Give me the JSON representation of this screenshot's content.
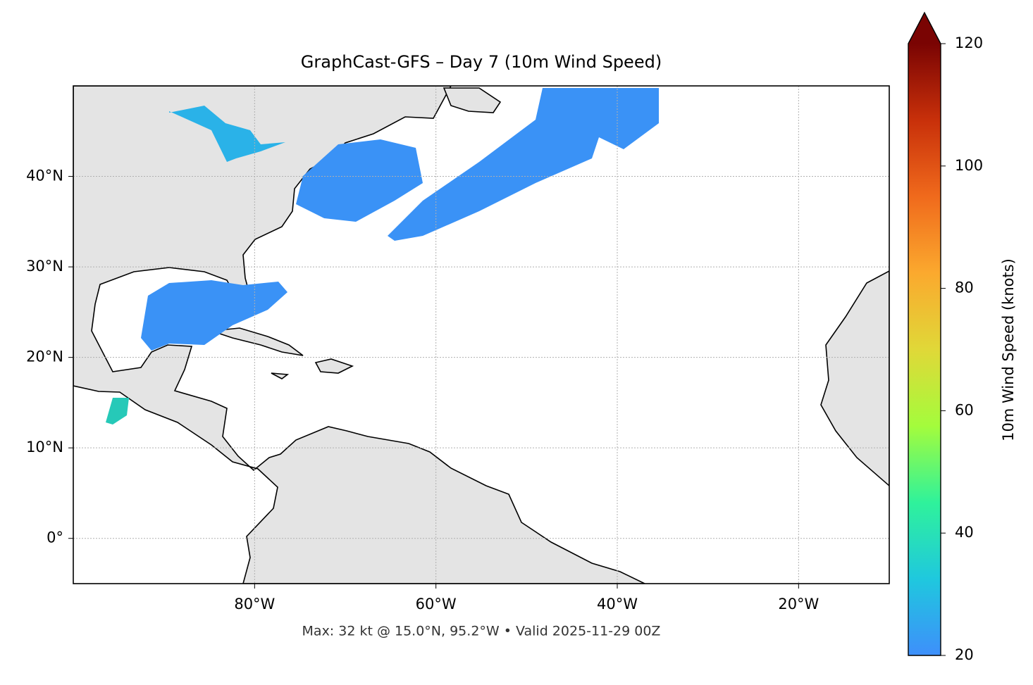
{
  "chart_data": {
    "type": "map",
    "title": "GraphCast-GFS – Day 7 (10m Wind Speed)",
    "footer": "Max: 32 kt @ 15.0°N, 95.2°W • Valid 2025-11-29 00Z",
    "xlim": [
      -100,
      -10
    ],
    "ylim": [
      -5,
      50
    ],
    "xticks": [
      {
        "value": -80,
        "label": "80°W"
      },
      {
        "value": -60,
        "label": "60°W"
      },
      {
        "value": -40,
        "label": "40°W"
      },
      {
        "value": -20,
        "label": "20°W"
      }
    ],
    "yticks": [
      {
        "value": 0,
        "label": "0°"
      },
      {
        "value": 10,
        "label": "10°N"
      },
      {
        "value": 20,
        "label": "20°N"
      },
      {
        "value": 30,
        "label": "30°N"
      },
      {
        "value": 40,
        "label": "40°N"
      }
    ],
    "grid": true,
    "colorbar": {
      "label": "10m Wind Speed (knots)",
      "lim": [
        20,
        120
      ],
      "ticks": [
        20,
        40,
        60,
        80,
        100,
        120
      ],
      "colors": [
        "#3e8ffb",
        "#1fc8de",
        "#2ff29b",
        "#a4fc3c",
        "#e0d838",
        "#fba92e",
        "#f06a1c",
        "#c8300a",
        "#7a0403"
      ],
      "extend": "max"
    }
  }
}
